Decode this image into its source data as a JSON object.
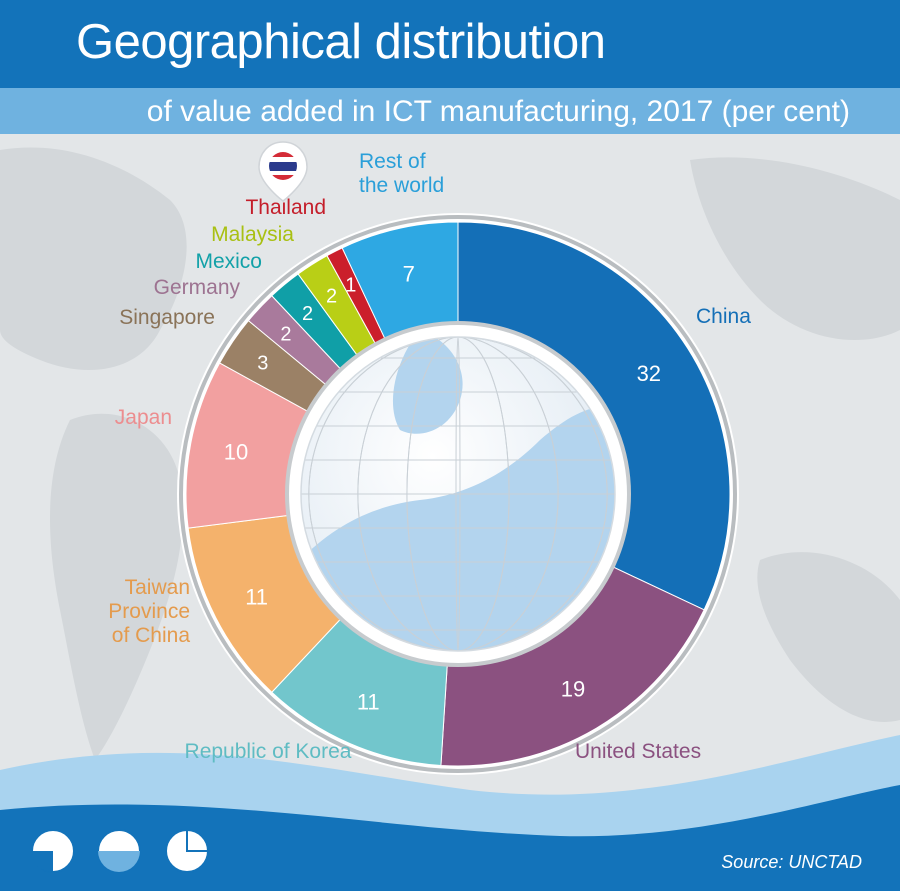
{
  "header": {
    "title": "Geographical distribution",
    "subtitle": "of value added in ICT manufacturing, 2017 (per cent)"
  },
  "footer": {
    "source": "Source: UNCTAD"
  },
  "chart_data": {
    "type": "pie",
    "variant": "donut",
    "title": "Geographical distribution",
    "subtitle": "of value added in ICT manufacturing, 2017 (per cent)",
    "unit": "per cent",
    "start": "top",
    "direction": "clockwise",
    "slices": [
      {
        "label": "China",
        "value": 32,
        "color": "#146fb7",
        "label_color": "#146fb7",
        "value_label": "32"
      },
      {
        "label": "United States",
        "value": 19,
        "color": "#8b5180",
        "label_color": "#8b5180",
        "value_label": "19"
      },
      {
        "label": "Republic of Korea",
        "value": 11,
        "color": "#72c6cc",
        "label_color": "#5fbcc3",
        "value_label": "11"
      },
      {
        "label": "Taiwan Province of China",
        "label_lines": [
          "Taiwan",
          "Province",
          "of China"
        ],
        "value": 11,
        "color": "#f4b26c",
        "label_color": "#e49b4d",
        "value_label": "11"
      },
      {
        "label": "Japan",
        "value": 10,
        "color": "#f2a0a0",
        "label_color": "#ec8d8f",
        "value_label": "10"
      },
      {
        "label": "Singapore",
        "value": 3,
        "color": "#9b8166",
        "label_color": "#8a7358",
        "value_label": "3"
      },
      {
        "label": "Germany",
        "value": 2,
        "color": "#a97a9c",
        "label_color": "#9d7391",
        "value_label": "2"
      },
      {
        "label": "Mexico",
        "value": 2,
        "color": "#109fa7",
        "label_color": "#12a1a8",
        "value_label": "2"
      },
      {
        "label": "Malaysia",
        "value": 2,
        "color": "#b9cf16",
        "label_color": "#a9c013",
        "value_label": "2"
      },
      {
        "label": "Thailand",
        "value": 1,
        "color": "#cb1f2b",
        "label_color": "#c41e2a",
        "value_label": "1"
      },
      {
        "label": "Rest of the world",
        "label_lines": [
          "Rest of",
          "the world"
        ],
        "value": 7,
        "color": "#2ea8e3",
        "label_color": "#2a9fd9",
        "value_label": "7"
      }
    ]
  }
}
